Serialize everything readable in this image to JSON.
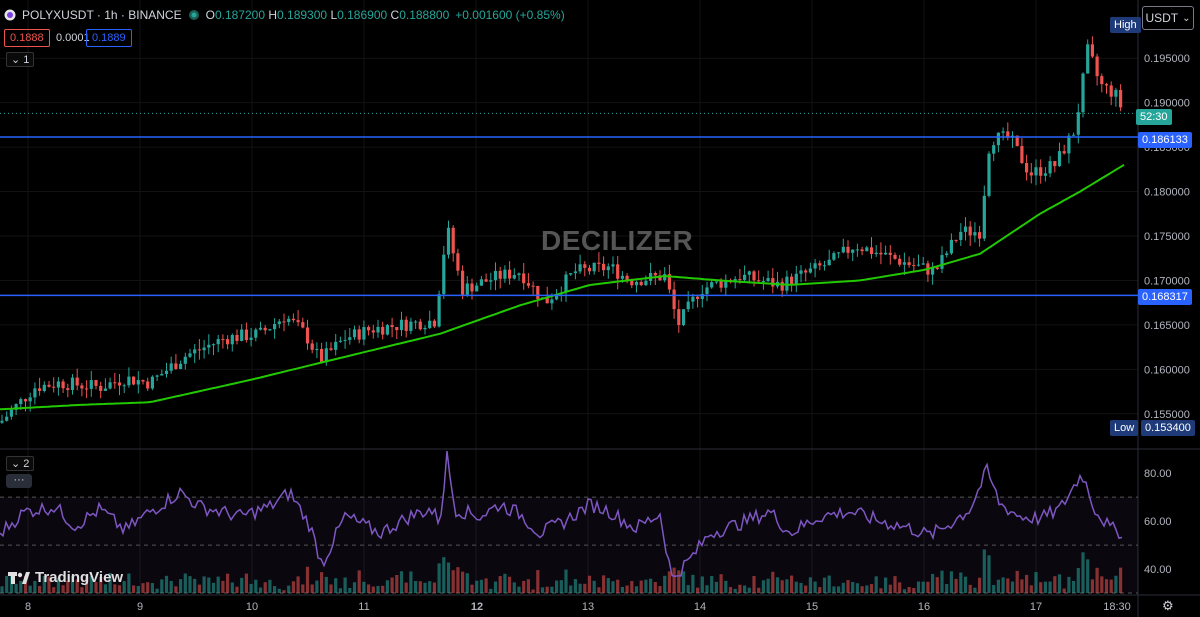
{
  "header": {
    "symbol": "POLYXUSDT · 1h · BINANCE",
    "open_label": "O",
    "open": "0.187200",
    "high_label": "H",
    "high": "0.189300",
    "low_label": "L",
    "low": "0.186900",
    "close_label": "C",
    "close": "0.188800",
    "change": "+0.001600 (+0.85%)"
  },
  "quote": {
    "bid": "0.1888",
    "spread": "0.0001",
    "ask": "0.1889"
  },
  "pane1_toggle": "1",
  "pane2_toggle": "2",
  "more_label": "···",
  "currency_button": "USDT",
  "watermark": "DECILIZER",
  "brand": "TradingView",
  "price_axis": {
    "ticks": [
      "0.195000",
      "0.190000",
      "0.185000",
      "0.180000",
      "0.175000",
      "0.170000",
      "0.165000",
      "0.160000",
      "0.155000"
    ],
    "high_label": "High",
    "low_label": "Low",
    "low_value": "0.153400",
    "countdown": "52:30",
    "line1_value": "0.186133",
    "line2_value": "0.168317"
  },
  "rsi_axis": {
    "ticks": [
      "80.00",
      "60.00",
      "40.00"
    ]
  },
  "time_axis": {
    "labels": [
      "8",
      "9",
      "10",
      "11",
      "12",
      "13",
      "14",
      "15",
      "16",
      "17",
      "18:30"
    ],
    "bold_label": "12"
  },
  "colors": {
    "up": "#26a69a",
    "down": "#ef5350",
    "ma": "#22c900",
    "hline": "#2962ff",
    "rsi": "#7e57c2",
    "background": "#000000"
  },
  "icons": [
    "polygon-logo-icon",
    "live-dot-icon",
    "chevron-down-icon",
    "tradingview-logo-icon",
    "gear-icon"
  ],
  "chart_data": {
    "type": "candlestick",
    "price_range": [
      0.1534,
      0.1993
    ],
    "horizontal_lines": [
      0.186133,
      0.168317
    ],
    "last_price": 0.1888,
    "candle_anchors": [
      [
        0,
        0.154
      ],
      [
        35,
        0.158
      ],
      [
        60,
        0.1585
      ],
      [
        100,
        0.158
      ],
      [
        125,
        0.159
      ],
      [
        150,
        0.1585
      ],
      [
        185,
        0.1615
      ],
      [
        225,
        0.1635
      ],
      [
        260,
        0.164
      ],
      [
        285,
        0.166
      ],
      [
        305,
        0.164
      ],
      [
        320,
        0.161
      ],
      [
        345,
        0.1635
      ],
      [
        370,
        0.1645
      ],
      [
        400,
        0.165
      ],
      [
        435,
        0.1655
      ],
      [
        447,
        0.176
      ],
      [
        462,
        0.169
      ],
      [
        500,
        0.1705
      ],
      [
        520,
        0.171
      ],
      [
        545,
        0.1675
      ],
      [
        575,
        0.171
      ],
      [
        610,
        0.1715
      ],
      [
        630,
        0.17
      ],
      [
        665,
        0.1705
      ],
      [
        678,
        0.165
      ],
      [
        700,
        0.169
      ],
      [
        740,
        0.1705
      ],
      [
        780,
        0.1695
      ],
      [
        800,
        0.1705
      ],
      [
        830,
        0.172
      ],
      [
        855,
        0.174
      ],
      [
        880,
        0.173
      ],
      [
        905,
        0.172
      ],
      [
        935,
        0.171
      ],
      [
        960,
        0.1755
      ],
      [
        980,
        0.1755
      ],
      [
        990,
        0.186
      ],
      [
        1010,
        0.186
      ],
      [
        1030,
        0.182
      ],
      [
        1055,
        0.183
      ],
      [
        1075,
        0.187
      ],
      [
        1088,
        0.196
      ],
      [
        1100,
        0.192
      ],
      [
        1115,
        0.191
      ],
      [
        1124,
        0.1888
      ]
    ],
    "ma_anchors": [
      [
        0,
        0.1555
      ],
      [
        80,
        0.156
      ],
      [
        150,
        0.1563
      ],
      [
        250,
        0.1588
      ],
      [
        330,
        0.161
      ],
      [
        440,
        0.164
      ],
      [
        520,
        0.1672
      ],
      [
        590,
        0.1695
      ],
      [
        665,
        0.1705
      ],
      [
        720,
        0.17
      ],
      [
        790,
        0.1695
      ],
      [
        860,
        0.17
      ],
      [
        925,
        0.1712
      ],
      [
        980,
        0.173
      ],
      [
        1040,
        0.1775
      ],
      [
        1080,
        0.18
      ],
      [
        1124,
        0.183
      ]
    ],
    "rsi_range": [
      30,
      88
    ],
    "rsi_levels": [
      70,
      50,
      30
    ],
    "rsi_anchors": [
      [
        0,
        55
      ],
      [
        25,
        64
      ],
      [
        55,
        66
      ],
      [
        75,
        58
      ],
      [
        100,
        65
      ],
      [
        125,
        56
      ],
      [
        150,
        64
      ],
      [
        180,
        72
      ],
      [
        200,
        66
      ],
      [
        240,
        62
      ],
      [
        270,
        66
      ],
      [
        290,
        72
      ],
      [
        310,
        58
      ],
      [
        322,
        42
      ],
      [
        345,
        62
      ],
      [
        380,
        55
      ],
      [
        410,
        62
      ],
      [
        430,
        65
      ],
      [
        440,
        60
      ],
      [
        447,
        87
      ],
      [
        455,
        65
      ],
      [
        480,
        62
      ],
      [
        500,
        67
      ],
      [
        520,
        63
      ],
      [
        540,
        55
      ],
      [
        565,
        60
      ],
      [
        590,
        67
      ],
      [
        610,
        64
      ],
      [
        635,
        57
      ],
      [
        660,
        63
      ],
      [
        672,
        36
      ],
      [
        690,
        44
      ],
      [
        710,
        55
      ],
      [
        740,
        59
      ],
      [
        770,
        64
      ],
      [
        790,
        55
      ],
      [
        820,
        62
      ],
      [
        850,
        64
      ],
      [
        880,
        60
      ],
      [
        910,
        57
      ],
      [
        930,
        54
      ],
      [
        950,
        59
      ],
      [
        970,
        65
      ],
      [
        987,
        81
      ],
      [
        1000,
        67
      ],
      [
        1020,
        62
      ],
      [
        1040,
        61
      ],
      [
        1060,
        65
      ],
      [
        1082,
        80
      ],
      [
        1095,
        65
      ],
      [
        1110,
        57
      ],
      [
        1124,
        55
      ]
    ]
  }
}
